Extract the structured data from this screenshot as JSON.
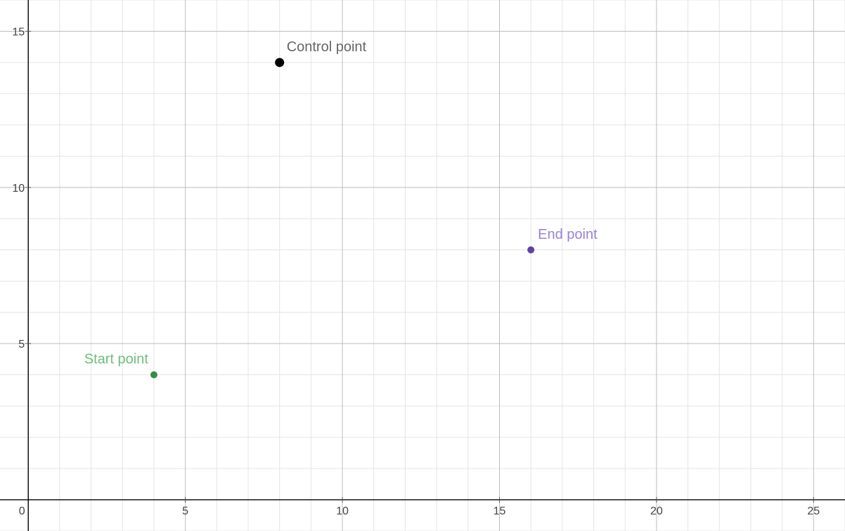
{
  "chart_data": {
    "type": "scatter",
    "xlim": [
      -0.9,
      26
    ],
    "ylim": [
      -1,
      16
    ],
    "grid": true,
    "major_step": 5,
    "minor_step": 1,
    "x_ticks": [
      0,
      5,
      10,
      15,
      20,
      25
    ],
    "y_ticks": [
      5,
      10,
      15
    ],
    "tick_labels": {
      "x0": "0",
      "x5": "5",
      "x10": "10",
      "x15": "15",
      "x20": "20",
      "x25": "25",
      "y5": "5",
      "y10": "10",
      "y15": "15"
    },
    "points": [
      {
        "id": "start",
        "label": "Start point",
        "x": 4,
        "y": 4,
        "color": "#388c46",
        "label_color": "#6ebf7a",
        "label_side": "left"
      },
      {
        "id": "control",
        "label": "Control point",
        "x": 8,
        "y": 14,
        "color": "#000000",
        "label_color": "#666666",
        "label_side": "right"
      },
      {
        "id": "end",
        "label": "End point",
        "x": 16,
        "y": 8,
        "color": "#6042a6",
        "label_color": "#9b82d4",
        "label_side": "right"
      }
    ]
  }
}
